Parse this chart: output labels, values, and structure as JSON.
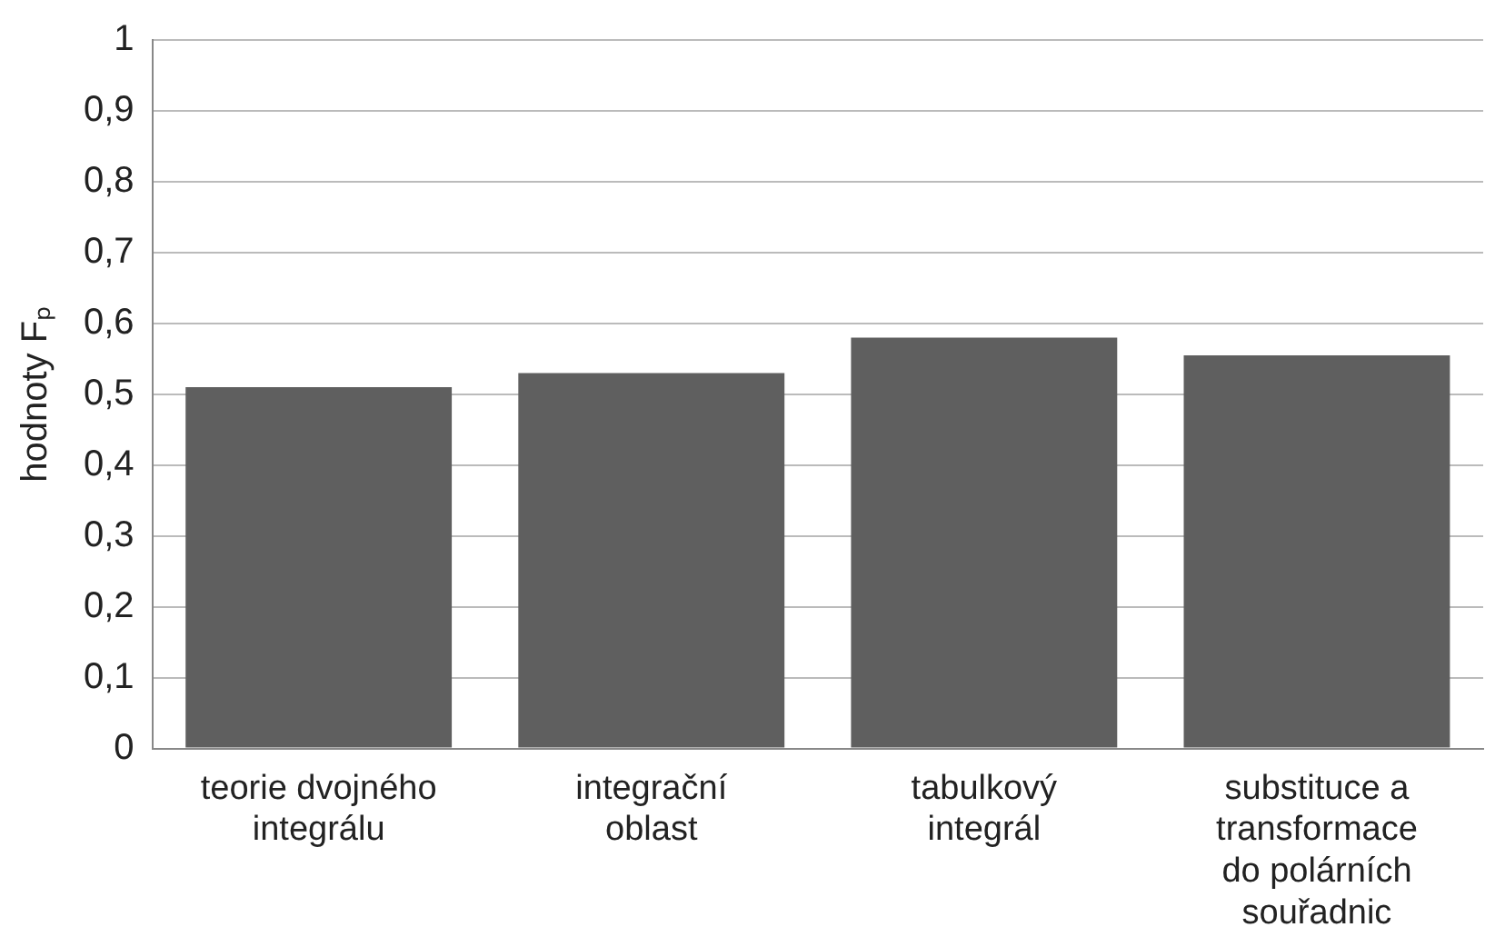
{
  "chart_data": {
    "type": "bar",
    "ylabel": "hodnoty Fₚ",
    "categories": [
      "teorie dvojného integrálu",
      "integrační oblast",
      "tabulkový integrál",
      "substituce a transformace do polárních souřadnic"
    ],
    "values": [
      0.51,
      0.53,
      0.58,
      0.555
    ],
    "color": "#5f5f5f",
    "ylim": [
      0,
      1
    ],
    "yticks": [
      {
        "value": 0,
        "label": "0"
      },
      {
        "value": 0.1,
        "label": "0,1"
      },
      {
        "value": 0.2,
        "label": "0,2"
      },
      {
        "value": 0.3,
        "label": "0,3"
      },
      {
        "value": 0.4,
        "label": "0,4"
      },
      {
        "value": 0.5,
        "label": "0,5"
      },
      {
        "value": 0.6,
        "label": "0,6"
      },
      {
        "value": 0.7,
        "label": "0,7"
      },
      {
        "value": 0.8,
        "label": "0,8"
      },
      {
        "value": 0.9,
        "label": "0,9"
      },
      {
        "value": 1,
        "label": "1"
      }
    ],
    "grid": "y"
  }
}
